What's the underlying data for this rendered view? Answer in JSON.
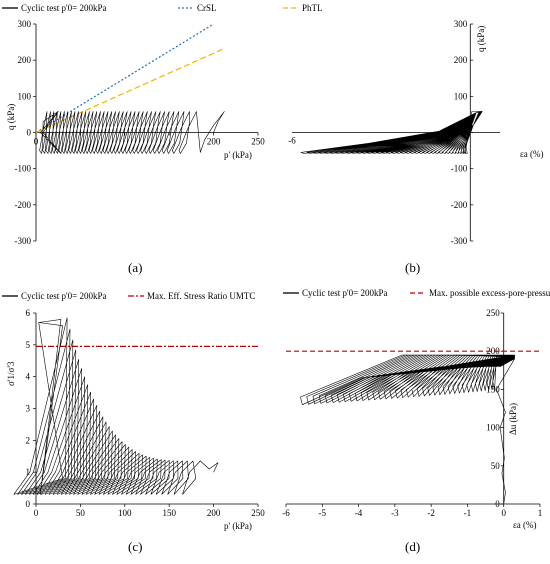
{
  "panels": [
    {
      "id": "a",
      "panel_label": "(a)",
      "legend": [
        {
          "label": "Cyclic test p'0= 200kPa",
          "color": "#000000",
          "dash": "solid"
        },
        {
          "label": "CrSL",
          "color": "#1f6fc0",
          "dash": "dotted"
        },
        {
          "label": "PhTL",
          "color": "#f0b400",
          "dash": "dashed"
        }
      ]
    },
    {
      "id": "b",
      "panel_label": "(b)",
      "legend": []
    },
    {
      "id": "c",
      "panel_label": "(c)",
      "legend": [
        {
          "label": "Cyclic test p'0= 200kPa",
          "color": "#000000",
          "dash": "solid"
        },
        {
          "label": "Max. Eff. Stress Ratio UMTC",
          "color": "#c00000",
          "dash": "dashdot"
        }
      ]
    },
    {
      "id": "d",
      "panel_label": "(d)",
      "legend": [
        {
          "label": "Cyclic test p'0= 200kPa",
          "color": "#000000",
          "dash": "solid"
        },
        {
          "label": "Max. possible excess-pore-pressure",
          "color": "#c00000",
          "dash": "dashed"
        }
      ]
    }
  ],
  "chart_data": [
    {
      "panel": "a",
      "type": "line",
      "xlabel": "p' (kPa)",
      "ylabel": "q (kPa)",
      "xlim": [
        0,
        250
      ],
      "ylim": [
        -300,
        300
      ],
      "xticks": [
        0,
        50,
        100,
        150,
        200,
        250
      ],
      "yticks": [
        -300,
        -200,
        -100,
        0,
        100,
        200,
        300
      ],
      "series": [
        {
          "name": "CrSL",
          "color": "#1f6fc0",
          "x": [
            0,
            200
          ],
          "y": [
            0,
            300
          ]
        },
        {
          "name": "PhTL",
          "color": "#f0b400",
          "x": [
            0,
            210
          ],
          "y": [
            0,
            230
          ]
        },
        {
          "name": "Cyclic test p'0= 200kPa",
          "color": "#000000",
          "description_points": {
            "p_start": 200,
            "q_amplitude": 58,
            "p_min": 5,
            "cycles": 38
          }
        }
      ]
    },
    {
      "panel": "b",
      "type": "line",
      "xlabel": "εa (%)",
      "ylabel": "q (kPa)",
      "xlim": [
        -6,
        1
      ],
      "ylim": [
        -300,
        300
      ],
      "xticks": [
        -6
      ],
      "yticks": [
        -300,
        -200,
        -100,
        0,
        100,
        200,
        300
      ],
      "series": [
        {
          "name": "Cyclic test p'0= 200kPa",
          "color": "#000000",
          "description_points": {
            "q_amplitude": 58,
            "ea_min": -5.7,
            "ea_max": 0.4,
            "cycles": 38
          }
        }
      ]
    },
    {
      "panel": "c",
      "type": "line",
      "xlabel": "p' (kPa)",
      "ylabel": "σ'1/σ'3",
      "xlim": [
        0,
        250
      ],
      "ylim": [
        0,
        6
      ],
      "xticks": [
        0,
        50,
        100,
        150,
        200,
        250
      ],
      "yticks": [
        0,
        1,
        2,
        3,
        4,
        5,
        6
      ],
      "series": [
        {
          "name": "Max. Eff. Stress Ratio UMTC",
          "color": "#c00000",
          "x": [
            0,
            250
          ],
          "y": [
            4.95,
            4.95
          ]
        },
        {
          "name": "Cyclic test p'0= 200kPa",
          "color": "#000000",
          "description_points": {
            "p_start": 200,
            "ratio_max": 5.8,
            "cycles": 38
          }
        }
      ]
    },
    {
      "panel": "d",
      "type": "line",
      "xlabel": "εa (%)",
      "ylabel": "Δu (kPa)",
      "xlim": [
        -6,
        1
      ],
      "ylim": [
        0,
        250
      ],
      "xticks": [
        -6,
        -5,
        -4,
        -3,
        -2,
        -1,
        0,
        1
      ],
      "yticks": [
        0,
        50,
        100,
        150,
        200,
        250
      ],
      "series": [
        {
          "name": "Max. possible excess-pore-pressure",
          "color": "#c00000",
          "x": [
            -6,
            1
          ],
          "y": [
            200,
            200
          ]
        },
        {
          "name": "Cyclic test p'0= 200kPa",
          "color": "#000000",
          "description_points": {
            "du_max": 197,
            "ea_min": -5.6,
            "cycles": 38
          }
        }
      ]
    }
  ]
}
